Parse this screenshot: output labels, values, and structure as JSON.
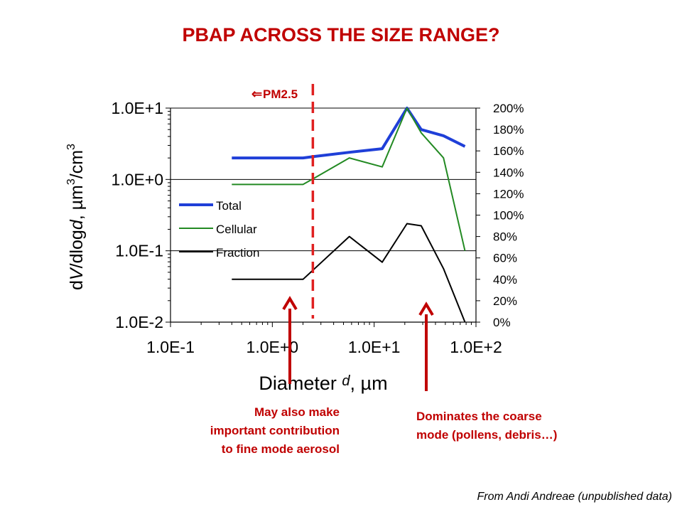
{
  "slide": {
    "title": "PBAP ACROSS THE SIZE RANGE?",
    "note_left": [
      "May also make",
      "important contribution",
      "to fine mode aerosol"
    ],
    "note_right": [
      "Dominates the coarse",
      "mode (pollens, debris…)"
    ],
    "source": "From Andi Andreae (unpublished data)"
  },
  "chart_data": {
    "type": "line",
    "x_scale": "log",
    "y_scale": "log",
    "xlim": [
      0.1,
      100
    ],
    "ylim": [
      0.01,
      10
    ],
    "y2lim": [
      0,
      200
    ],
    "x_ticks": [
      "1.0E-1",
      "1.0E+0",
      "1.0E+1",
      "1.0E+2"
    ],
    "y_ticks": [
      "1.0E-2",
      "1.0E-1",
      "1.0E+0",
      "1.0E+1"
    ],
    "y2_ticks": [
      "0%",
      "20%",
      "40%",
      "60%",
      "80%",
      "100%",
      "120%",
      "140%",
      "160%",
      "180%",
      "200%"
    ],
    "xlabel": {
      "pre": "Diameter ",
      "var": "d",
      "post": ", µm"
    },
    "ylabel": {
      "pre": "d",
      "var1": "V",
      "mid": "/dlog",
      "var2": "d",
      "post": ", µm",
      "sup1": "3",
      "unit": "/cm",
      "sup2": "3"
    },
    "grid": "horizontal major",
    "legend_position": "center-left",
    "series": [
      {
        "name": "Total",
        "color": "#1f3fd8",
        "axis": "left",
        "x": [
          0.4,
          2.0,
          2.6,
          5.7,
          12.0,
          21.0,
          29.0,
          48.0,
          78.0
        ],
        "y": [
          2.0,
          2.0,
          2.1,
          2.4,
          2.7,
          10.0,
          5.0,
          4.1,
          2.9
        ]
      },
      {
        "name": "Cellular",
        "color": "#238a23",
        "axis": "left",
        "x": [
          0.4,
          2.0,
          2.6,
          5.7,
          12.0,
          21.0,
          29.0,
          48.0,
          78.0
        ],
        "y": [
          0.85,
          0.85,
          1.05,
          2.0,
          1.5,
          10.0,
          4.5,
          2.0,
          0.1
        ]
      },
      {
        "name": "Fraction",
        "color": "#000000",
        "axis": "right",
        "x": [
          0.4,
          2.0,
          2.6,
          5.7,
          12.0,
          21.0,
          29.0,
          48.0,
          78.0
        ],
        "y": [
          40,
          40,
          50,
          80,
          56,
          92,
          90,
          50,
          0
        ]
      }
    ],
    "annotations": {
      "pm_line_x": 2.5,
      "pm_label": "PM2.5",
      "pm_arrow": "⇐"
    }
  }
}
